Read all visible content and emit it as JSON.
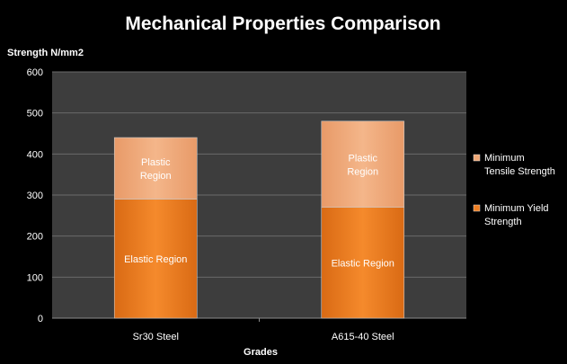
{
  "chart_data": {
    "type": "bar",
    "stacked": true,
    "title": "Mechanical Properties Comparison",
    "ylabel": "Strength N/mm2",
    "xlabel": "Grades",
    "ylim": [
      0,
      600
    ],
    "yticks": [
      0,
      100,
      200,
      300,
      400,
      500,
      600
    ],
    "grid": true,
    "legend_position": "right",
    "categories": [
      "Sr30 Steel",
      "A615-40 Steel"
    ],
    "series": [
      {
        "name": "Minimum Yield Strength",
        "values": [
          290,
          270
        ],
        "color": "#f07f22",
        "segment_labels": [
          "Elastic Region",
          "Elastic Region"
        ]
      },
      {
        "name": "Minimum Tensile Strength",
        "values": [
          150,
          210
        ],
        "color": "#f0a876",
        "segment_labels": [
          "Plastic Region",
          "Plastic Region"
        ]
      }
    ],
    "colors": {
      "background": "#000000",
      "plot_area": "#3d3d3d",
      "gridline": "#6a6a6a",
      "text": "#ffffff"
    }
  }
}
